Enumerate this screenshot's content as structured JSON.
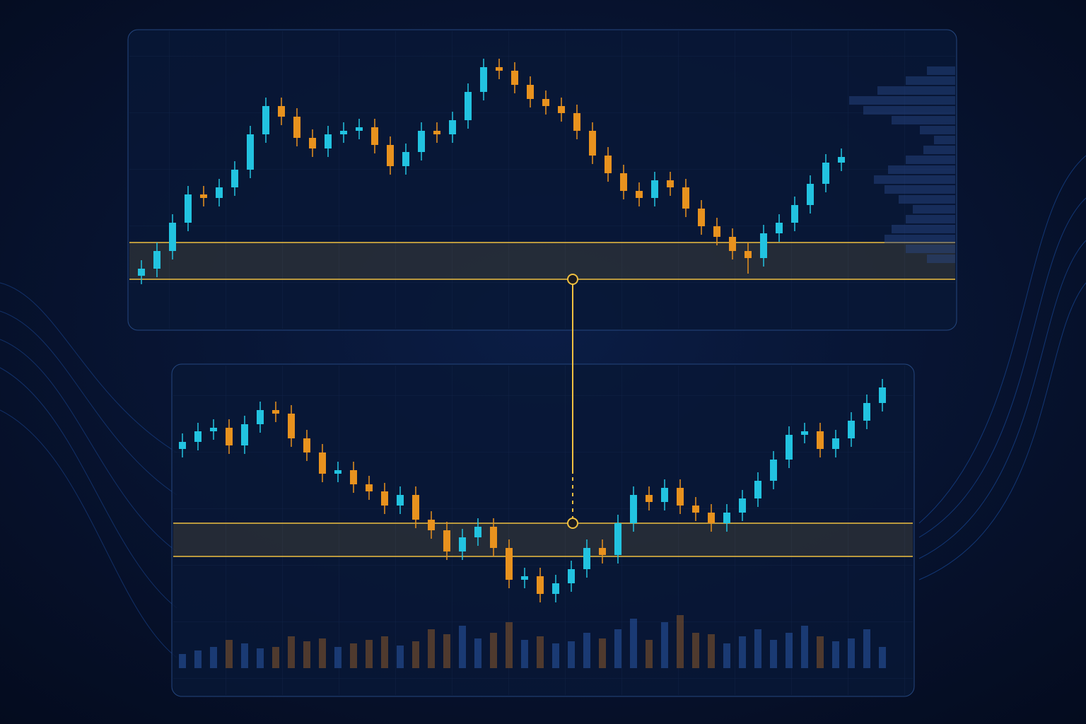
{
  "chart_data": [
    {
      "type": "candlestick",
      "up_color": "#22c3e0",
      "down_color": "#e8921e",
      "zone_color": "#f0c040",
      "ylim": [
        0,
        420
      ],
      "open": [
        77,
        87,
        112,
        152,
        192,
        187,
        202,
        227,
        277,
        317,
        302,
        272,
        257,
        277,
        282,
        287,
        262,
        232,
        252,
        282,
        277,
        297,
        337,
        372,
        367,
        347,
        327,
        317,
        307,
        282,
        247,
        222,
        197,
        187,
        212,
        202,
        172,
        147,
        132,
        112,
        102,
        137,
        152,
        177,
        207,
        237
      ],
      "high": [
        99,
        124,
        164,
        204,
        204,
        214,
        239,
        289,
        329,
        329,
        314,
        284,
        289,
        294,
        299,
        299,
        274,
        264,
        294,
        294,
        309,
        349,
        384,
        384,
        379,
        359,
        339,
        329,
        319,
        294,
        259,
        234,
        209,
        224,
        224,
        214,
        184,
        159,
        144,
        124,
        149,
        164,
        189,
        219,
        249,
        257
      ],
      "low": [
        65,
        75,
        100,
        140,
        175,
        175,
        190,
        215,
        265,
        290,
        260,
        245,
        245,
        265,
        270,
        250,
        220,
        220,
        240,
        265,
        265,
        285,
        325,
        355,
        335,
        315,
        305,
        295,
        270,
        235,
        210,
        185,
        175,
        175,
        190,
        160,
        135,
        120,
        100,
        80,
        90,
        125,
        140,
        165,
        195,
        225
      ],
      "close": [
        87,
        112,
        152,
        192,
        187,
        202,
        227,
        277,
        317,
        302,
        272,
        257,
        277,
        282,
        287,
        262,
        232,
        252,
        282,
        277,
        297,
        337,
        372,
        367,
        347,
        327,
        317,
        307,
        282,
        247,
        222,
        197,
        187,
        212,
        202,
        172,
        147,
        132,
        112,
        102,
        137,
        152,
        177,
        207,
        237,
        245
      ],
      "zone": [
        72,
        124
      ],
      "profile": {
        "color": "#2a4a8a",
        "xlim": [
          0,
          160
        ],
        "levels": [
          367,
          353,
          339,
          325,
          311,
          297,
          283,
          269,
          255,
          241,
          227,
          213,
          199,
          185,
          171,
          157,
          143,
          129,
          115,
          101
        ],
        "values": [
          40,
          70,
          110,
          150,
          130,
          90,
          50,
          30,
          45,
          70,
          95,
          115,
          100,
          80,
          60,
          70,
          90,
          100,
          70,
          40
        ]
      }
    },
    {
      "type": "candlestick",
      "up_color": "#22c3e0",
      "down_color": "#e8921e",
      "zone_color": "#f0c040",
      "ylim": [
        0,
        470
      ],
      "open": [
        350,
        360,
        375,
        380,
        355,
        385,
        405,
        400,
        365,
        345,
        315,
        320,
        300,
        290,
        270,
        285,
        250,
        235,
        205,
        225,
        240,
        210,
        165,
        170,
        145,
        160,
        180,
        210,
        200,
        245,
        285,
        275,
        295,
        270,
        260,
        245,
        260,
        280,
        305,
        335,
        370,
        375,
        350,
        365,
        390,
        415
      ],
      "high": [
        372,
        387,
        392,
        392,
        397,
        417,
        417,
        412,
        377,
        357,
        332,
        332,
        312,
        302,
        297,
        297,
        262,
        247,
        237,
        252,
        252,
        222,
        182,
        182,
        172,
        192,
        222,
        222,
        257,
        297,
        297,
        307,
        307,
        282,
        272,
        272,
        292,
        317,
        347,
        382,
        387,
        387,
        377,
        402,
        427,
        449
      ],
      "low": [
        338,
        348,
        363,
        343,
        343,
        373,
        388,
        353,
        333,
        303,
        303,
        288,
        278,
        258,
        258,
        238,
        223,
        193,
        193,
        213,
        198,
        153,
        153,
        133,
        133,
        148,
        168,
        188,
        188,
        233,
        263,
        263,
        258,
        248,
        233,
        233,
        248,
        268,
        293,
        323,
        358,
        338,
        338,
        353,
        378,
        403
      ],
      "close": [
        360,
        375,
        380,
        355,
        385,
        405,
        400,
        365,
        345,
        315,
        320,
        300,
        290,
        270,
        285,
        250,
        235,
        205,
        225,
        240,
        210,
        165,
        170,
        145,
        160,
        180,
        210,
        200,
        245,
        285,
        275,
        295,
        270,
        260,
        245,
        260,
        280,
        305,
        335,
        370,
        375,
        350,
        365,
        390,
        415,
        437
      ],
      "zone": [
        198,
        245
      ],
      "volume": {
        "ylim": [
          0,
          80
        ],
        "values": [
          20,
          25,
          30,
          40,
          35,
          28,
          30,
          45,
          38,
          42,
          30,
          35,
          40,
          45,
          32,
          38,
          55,
          48,
          60,
          42,
          50,
          65,
          40,
          45,
          35,
          38,
          50,
          42,
          55,
          70,
          40,
          65,
          75,
          50,
          48,
          35,
          45,
          55,
          40,
          50,
          60,
          45,
          38,
          42,
          55,
          30
        ]
      }
    }
  ]
}
